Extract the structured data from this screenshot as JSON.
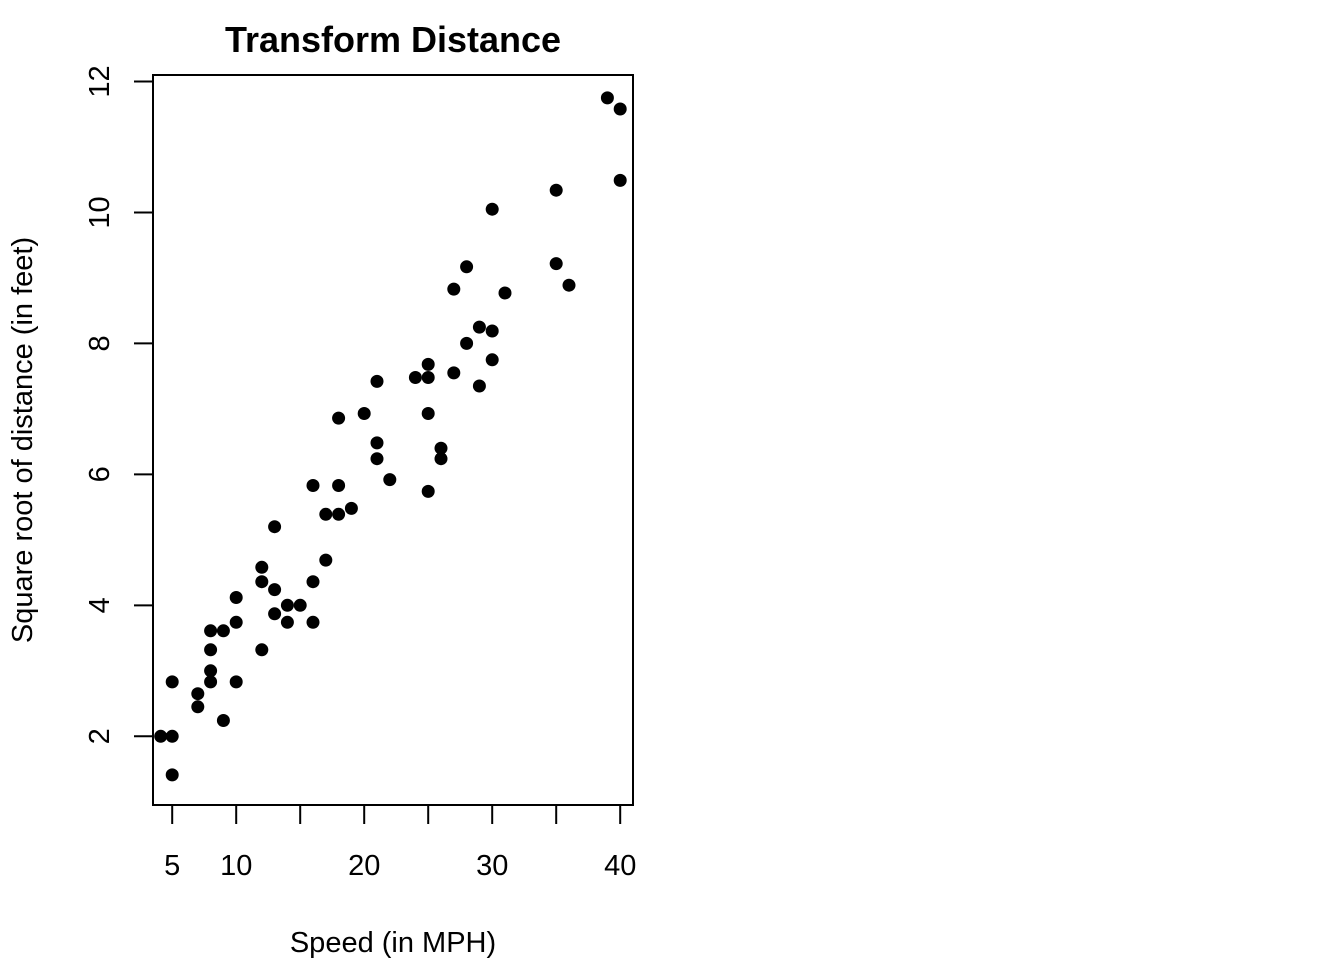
{
  "chart_data": {
    "type": "scatter",
    "title": "Transform Distance",
    "xlabel": "Speed (in MPH)",
    "ylabel": "Square root of distance (in feet)",
    "xlim": [
      3.5,
      41
    ],
    "ylim": [
      0.95,
      12.1
    ],
    "xticks": [
      5,
      10,
      20,
      30,
      40
    ],
    "yticks": [
      2,
      4,
      6,
      8,
      10,
      12
    ],
    "xticks_unlabeled": [
      15,
      25,
      35
    ],
    "grid": false,
    "legend": "none",
    "point_color": "#000000",
    "points": [
      [
        4.1,
        2.0
      ],
      [
        5,
        2.0
      ],
      [
        5,
        2.83
      ],
      [
        5,
        1.41
      ],
      [
        7,
        2.65
      ],
      [
        7,
        2.45
      ],
      [
        8,
        3.61
      ],
      [
        8,
        3.32
      ],
      [
        8,
        3.0
      ],
      [
        8,
        2.83
      ],
      [
        9,
        3.61
      ],
      [
        9,
        2.24
      ],
      [
        10,
        4.12
      ],
      [
        10,
        3.74
      ],
      [
        10,
        2.83
      ],
      [
        12,
        4.58
      ],
      [
        12,
        4.36
      ],
      [
        12,
        3.32
      ],
      [
        13,
        5.2
      ],
      [
        13,
        4.24
      ],
      [
        13,
        3.87
      ],
      [
        14,
        4.0
      ],
      [
        14,
        3.74
      ],
      [
        15,
        4.0
      ],
      [
        16,
        5.83
      ],
      [
        16,
        4.36
      ],
      [
        16,
        3.74
      ],
      [
        17,
        5.39
      ],
      [
        17,
        4.69
      ],
      [
        18,
        6.86
      ],
      [
        18,
        5.83
      ],
      [
        18,
        5.39
      ],
      [
        19,
        5.48
      ],
      [
        20,
        6.93
      ],
      [
        21,
        7.42
      ],
      [
        21,
        6.48
      ],
      [
        21,
        6.24
      ],
      [
        22,
        5.92
      ],
      [
        24,
        7.48
      ],
      [
        25,
        7.68
      ],
      [
        25,
        7.48
      ],
      [
        25,
        6.93
      ],
      [
        25,
        5.74
      ],
      [
        26,
        6.4
      ],
      [
        26,
        6.24
      ],
      [
        27,
        8.83
      ],
      [
        27,
        7.55
      ],
      [
        28,
        9.17
      ],
      [
        28,
        8.0
      ],
      [
        29,
        8.25
      ],
      [
        29,
        7.35
      ],
      [
        30,
        10.05
      ],
      [
        30,
        8.19
      ],
      [
        30,
        7.75
      ],
      [
        31,
        8.77
      ],
      [
        35,
        10.34
      ],
      [
        35,
        9.22
      ],
      [
        36,
        8.89
      ],
      [
        39,
        11.75
      ],
      [
        40,
        11.58
      ],
      [
        40,
        10.49
      ]
    ]
  }
}
